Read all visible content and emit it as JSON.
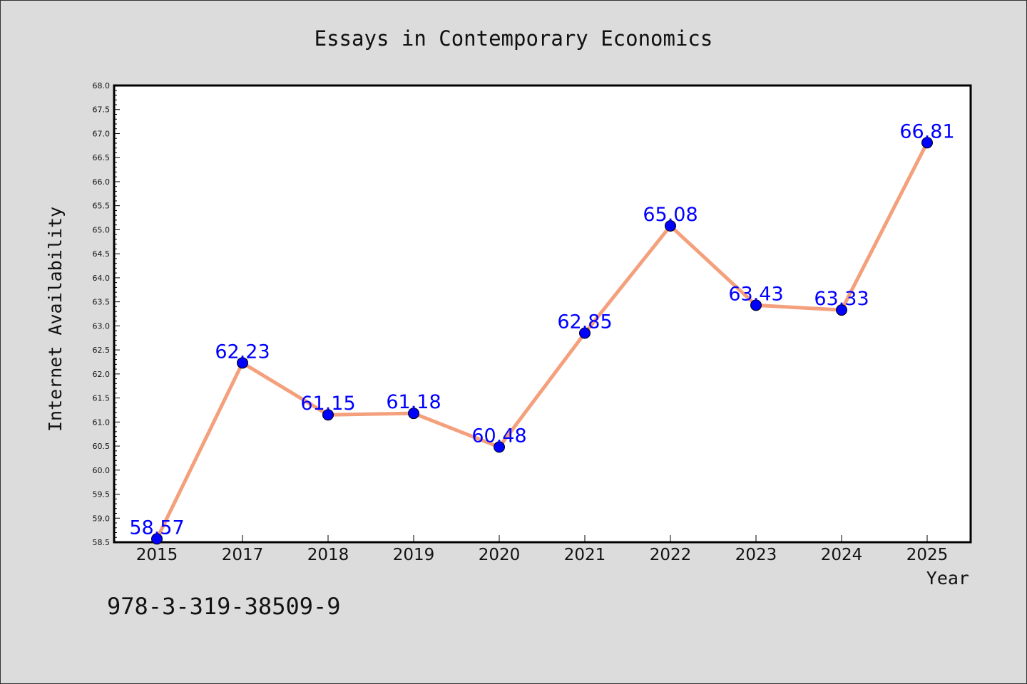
{
  "chart_data": {
    "type": "line",
    "title": "Essays in Contemporary Economics",
    "xlabel": "Year",
    "ylabel": "Internet Availability",
    "categories": [
      "2015",
      "2017",
      "2018",
      "2019",
      "2020",
      "2021",
      "2022",
      "2023",
      "2024",
      "2025"
    ],
    "series": [
      {
        "values": [
          58.57,
          62.23,
          61.15,
          61.18,
          60.48,
          62.85,
          65.08,
          63.43,
          63.33,
          66.81
        ],
        "labels": [
          "58.57",
          "62.23",
          "61.15",
          "61.18",
          "60.48",
          "62.85",
          "65.08",
          "63.43",
          "63.33",
          "66.81"
        ],
        "line_color": "#f4a07c",
        "marker_color": "#0000ff",
        "label_color": "#0000ff"
      }
    ],
    "ylim": [
      58.5,
      68.0
    ],
    "y_ticks": [
      "58.5",
      "59.0",
      "59.5",
      "60.0",
      "60.5",
      "61.0",
      "61.5",
      "62.0",
      "62.5",
      "63.0",
      "63.5",
      "64.0",
      "64.5",
      "65.0",
      "65.5",
      "66.0",
      "66.5",
      "67.0",
      "67.5",
      "68.0"
    ],
    "grid": false,
    "legend": "none"
  },
  "footer": {
    "isbn": "978-3-319-38509-9"
  }
}
